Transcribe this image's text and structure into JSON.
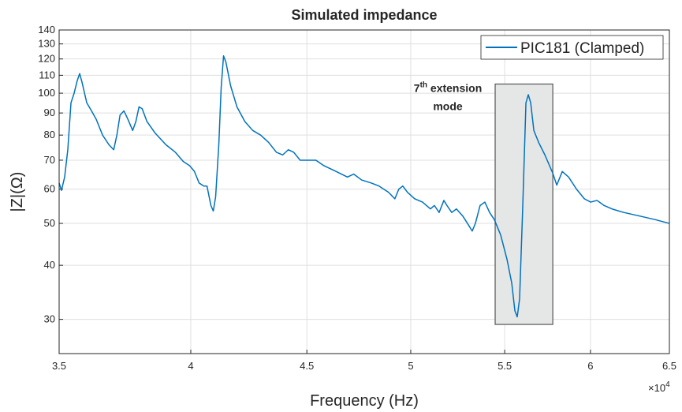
{
  "chart_data": {
    "type": "line",
    "title": "Simulated impedance",
    "xlabel": "Frequency (Hz)",
    "ylabel": "|Z|(Ω)",
    "x_exponent": {
      "base": "×10",
      "power": "4"
    },
    "xscale": "log",
    "yscale": "log",
    "grid": true,
    "legend": "upper right",
    "xlim": [
      35000,
      65000
    ],
    "ylim": [
      25,
      140
    ],
    "xticks": [
      {
        "value": 35000,
        "label": "3.5"
      },
      {
        "value": 40000,
        "label": "4"
      },
      {
        "value": 45000,
        "label": "4.5"
      },
      {
        "value": 50000,
        "label": "5"
      },
      {
        "value": 55000,
        "label": "5.5"
      },
      {
        "value": 60000,
        "label": "6"
      },
      {
        "value": 65000,
        "label": "6.5"
      }
    ],
    "yticks": [
      30,
      40,
      50,
      60,
      70,
      80,
      90,
      100,
      110,
      120,
      130,
      140
    ],
    "x": [
      35000,
      35084,
      35196,
      35309,
      35423,
      35536,
      35650,
      35736,
      35822,
      35995,
      36169,
      36343,
      36577,
      36814,
      36992,
      37111,
      37230,
      37380,
      37530,
      37711,
      37833,
      37955,
      38077,
      38261,
      38570,
      39004,
      39381,
      39697,
      39952,
      40145,
      40339,
      40533,
      40663,
      40826,
      40924,
      41022,
      41154,
      41253,
      41352,
      41451,
      41651,
      41918,
      42256,
      42596,
      42938,
      43283,
      43631,
      43911,
      44158,
      44406,
      44691,
      45050,
      45413,
      45778,
      46331,
      46890,
      47192,
      47571,
      48030,
      48417,
      48885,
      49200,
      49398,
      49597,
      49836,
      50197,
      50601,
      51009,
      51214,
      51460,
      51708,
      51873,
      52122,
      52373,
      52709,
      52962,
      53217,
      53388,
      53645,
      53903,
      54164,
      54426,
      54776,
      55128,
      55394,
      55571,
      55704,
      55838,
      56018,
      56198,
      56333,
      56469,
      56650,
      56923,
      57288,
      57750,
      57982,
      58308,
      58683,
      59154,
      59629,
      60013,
      60398,
      60834,
      61325,
      62064,
      63066,
      64085,
      65000
    ],
    "series": [
      {
        "name": "PIC181 (Clamped)",
        "color": "#0072bd",
        "values": [
          62,
          59.6,
          64,
          74,
          95,
          100,
          107,
          111,
          106,
          95,
          91,
          87,
          80,
          76,
          74,
          80,
          89,
          91,
          87,
          82,
          86,
          93,
          92,
          86,
          81,
          76,
          73,
          69.5,
          68,
          66,
          62,
          61,
          61,
          55,
          53.4,
          57.6,
          76,
          103,
          122,
          118,
          104,
          93,
          86,
          82,
          80,
          77,
          73,
          72,
          74,
          73,
          70,
          70,
          70,
          68,
          66,
          64,
          65,
          63,
          62,
          61,
          59,
          57,
          60,
          61,
          59,
          57,
          56,
          54,
          55,
          53,
          56.5,
          55,
          53,
          54,
          52,
          50,
          48,
          50,
          55,
          56,
          53,
          51,
          47,
          41.3,
          36.4,
          31.4,
          30.4,
          33.5,
          55,
          95,
          99.2,
          95,
          82,
          77,
          72,
          65.3,
          61.3,
          65.9,
          64,
          60,
          57,
          56,
          56.5,
          55,
          54,
          53,
          52,
          51,
          50
        ]
      }
    ],
    "highlight": {
      "x": [
        54470,
        57750
      ],
      "y": [
        29.2,
        105
      ]
    },
    "annotation": {
      "number": "7",
      "superscript": "th",
      "line1": " extension",
      "line2": "mode"
    }
  }
}
